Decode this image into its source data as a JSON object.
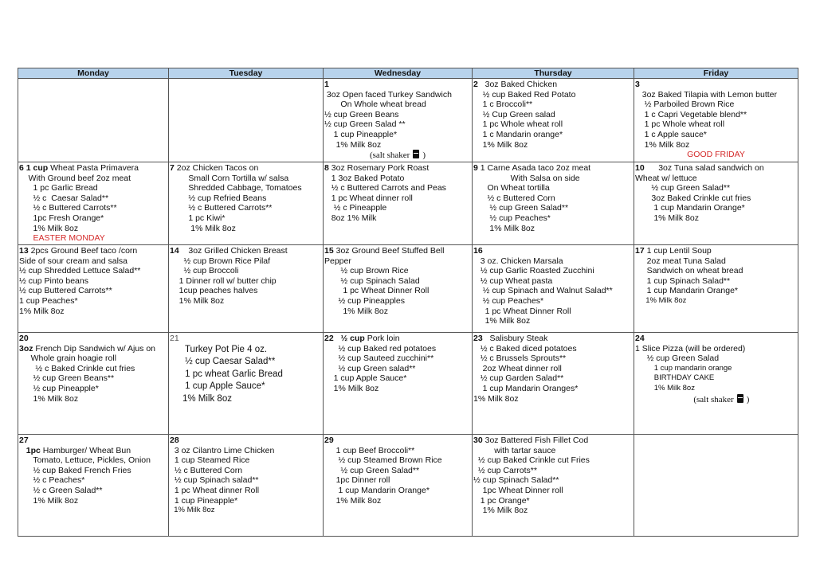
{
  "header": [
    "Monday",
    "Tuesday",
    "Wednesday",
    "Thursday",
    "Friday"
  ],
  "colors": {
    "header_bg": "#b8d3ec",
    "holiday": "#d42a2a"
  },
  "weeks": [
    [
      {
        "day": "",
        "lines": []
      },
      {
        "day": "",
        "lines": []
      },
      {
        "day": "1",
        "day_own_line": true,
        "lines": [
          {
            "t": " 3oz Open faced Turkey Sandwich"
          },
          {
            "t": "       On Whole wheat bread"
          },
          {
            "t": "½ cup Green Beans"
          },
          {
            "t": "½ cup Green Salad **"
          },
          {
            "t": "    1 cup Pineapple*"
          },
          {
            "t": "     1% Milk 8oz"
          },
          {
            "t": "(salt shaker",
            "s": "salt",
            "icon": "salt-shaker-icon",
            "after": ")"
          }
        ]
      },
      {
        "day": "2",
        "lines": [
          {
            "t": "  3oz Baked Chicken"
          },
          {
            "t": "    ½ cup Baked Red Potato"
          },
          {
            "t": "    1 c Broccoli**"
          },
          {
            "t": "    ½ Cup Green salad"
          },
          {
            "t": "    1 pc Whole wheat roll"
          },
          {
            "t": "    1 c Mandarin orange*"
          },
          {
            "t": "    1% Milk 8oz"
          }
        ]
      },
      {
        "day": "3",
        "day_own_line": true,
        "lines": [
          {
            "t": "   3oz Baked Tilapia with Lemon butter"
          },
          {
            "t": "    ½ Parboiled Brown Rice"
          },
          {
            "t": "    1 c Capri Vegetable blend**"
          },
          {
            "t": "    1 pc Whole wheat roll"
          },
          {
            "t": "    1 c Apple sauce*"
          },
          {
            "t": "    1% Milk 8oz"
          },
          {
            "t": "GOOD FRIDAY",
            "s": "red-center"
          }
        ]
      }
    ],
    [
      {
        "day": "6",
        "lines": [
          {
            "b": "1 cup",
            "t": " Wheat Pasta Primavera"
          },
          {
            "t": "    With Ground beef 2oz meat"
          },
          {
            "t": "      1 pc Garlic Bread"
          },
          {
            "t": "      ½ c  Caesar Salad**"
          },
          {
            "t": "      ½ c Buttered Carrots**"
          },
          {
            "t": "      1pc Fresh Orange*"
          },
          {
            "t": "      1% Milk 8oz"
          },
          {
            "t": "      EASTER MONDAY",
            "s": "red"
          }
        ]
      },
      {
        "day": "7",
        "lines": [
          {
            "t": "2oz Chicken Tacos on"
          },
          {
            "t": "        Small Corn Tortilla w/ salsa"
          },
          {
            "t": "        Shredded Cabbage, Tomatoes"
          },
          {
            "t": "        ½ cup Refried Beans"
          },
          {
            "t": "        ½ c Buttered Carrots**"
          },
          {
            "t": "        1 pc Kiwi*"
          },
          {
            "t": "         1% Milk 8oz"
          }
        ]
      },
      {
        "day": "8",
        "lines": [
          {
            "t": "3oz Rosemary Pork Roast"
          },
          {
            "t": "   1 3oz Baked Potato"
          },
          {
            "t": "   ½ c Buttered Carrots and Peas"
          },
          {
            "t": "   1 pc Wheat dinner roll"
          },
          {
            "t": "    ½ c Pineapple"
          },
          {
            "t": "   8oz 1% Milk"
          }
        ]
      },
      {
        "day": "9",
        "lines": [
          {
            "t": "1 Carne Asada taco 2oz meat"
          },
          {
            "t": "                With Salsa on side"
          },
          {
            "t": "      On Wheat tortilla"
          },
          {
            "t": "      ½ c Buttered Corn"
          },
          {
            "t": "       ½ cup Green Salad**"
          },
          {
            "t": "       ½ cup Peaches*"
          },
          {
            "t": "       1% Milk 8oz"
          }
        ]
      },
      {
        "day": "10",
        "lines": [
          {
            "t": "     3oz Tuna salad sandwich on"
          },
          {
            "t": "Wheat w/ lettuce"
          },
          {
            "t": "       ½ cup Green Salad**"
          },
          {
            "t": "       3oz Baked Crinkle cut fries"
          },
          {
            "t": "        1 cup Mandarin Orange*"
          },
          {
            "t": "        1% Milk 8oz"
          }
        ]
      }
    ],
    [
      {
        "day": "13",
        "lines": [
          {
            "t": "2pcs Ground Beef taco /corn"
          },
          {
            "t": "Side of sour cream and salsa"
          },
          {
            "t": "½ cup Shredded Lettuce Salad**"
          },
          {
            "t": "½ cup Pinto beans"
          },
          {
            "t": "½ cup Buttered Carrots**"
          },
          {
            "t": "1 cup Peaches*"
          },
          {
            "t": "1% Milk 8oz"
          }
        ]
      },
      {
        "day": "14",
        "lines": [
          {
            "t": "   3oz Grilled Chicken Breast"
          },
          {
            "t": "      ½ cup Brown Rice Pilaf"
          },
          {
            "t": "      ½ cup Broccoli"
          },
          {
            "t": "    1 Dinner roll w/ butter chip"
          },
          {
            "t": "    1cup peaches halves"
          },
          {
            "t": "    1% Milk 8oz"
          }
        ]
      },
      {
        "day": "15",
        "lines": [
          {
            "t": "3oz Ground Beef Stuffed Bell"
          },
          {
            "t": "Pepper"
          },
          {
            "t": "       ½ cup Brown Rice"
          },
          {
            "t": "       ½ cup Spinach Salad"
          },
          {
            "t": "        1 pc Wheat Dinner Roll"
          },
          {
            "t": "      ½ cup Pineapples"
          },
          {
            "t": "        1% Milk 8oz"
          }
        ]
      },
      {
        "day": "16",
        "day_own_line": true,
        "lines": [
          {
            "t": "   3 oz. Chicken Marsala"
          },
          {
            "t": "   ½ cup Garlic Roasted Zucchini"
          },
          {
            "t": "   ½ cup Wheat pasta"
          },
          {
            "t": "    ½ cup Spinach and Walnut Salad**"
          },
          {
            "t": "    ½ cup Peaches*"
          },
          {
            "t": "     1 pc Wheat Dinner Roll"
          },
          {
            "t": "     1% Milk 8oz"
          }
        ]
      },
      {
        "day": "17",
        "lines": [
          {
            "t": "1 cup Lentil Soup"
          },
          {
            "t": "     2oz meat Tuna Salad"
          },
          {
            "t": "     Sandwich on wheat bread"
          },
          {
            "t": "     1 cup Spinach Salad**"
          },
          {
            "t": "     1 cup Mandarin Orange*"
          },
          {
            "t": "     1% Milk 8oz",
            "s": "small"
          }
        ]
      }
    ],
    [
      {
        "day": "20",
        "day_own_line": true,
        "lines": [
          {
            "b": "3oz",
            "t": " French Dip Sandwich w/ Ajus on"
          },
          {
            "t": "     Whole grain hoagie roll"
          },
          {
            "t": "       ½ c Baked Crinkle cut fries"
          },
          {
            "t": "      ½ cup Green Beans**"
          },
          {
            "t": "      ½ cup Pineapple*"
          },
          {
            "t": "      1% Milk 8oz"
          }
        ]
      },
      {
        "day": "21",
        "day_own_line": true,
        "gray": true,
        "lines": [
          {
            "t": "      Turkey Pot Pie 4 oz.",
            "s": "big"
          },
          {
            "t": "      ½ cup Caesar Salad**",
            "s": "big"
          },
          {
            "t": "      1 pc wheat Garlic Bread",
            "s": "big"
          },
          {
            "t": "      1 cup Apple Sauce*",
            "s": "big"
          },
          {
            "t": "     1% Milk 8oz",
            "s": "big"
          }
        ]
      },
      {
        "day": "22",
        "lines": [
          {
            "b": "  ½ cup",
            "t": " Pork loin"
          },
          {
            "t": "      ½ cup Baked red potatoes"
          },
          {
            "t": "      ½ cup Sauteed zucchini**"
          },
          {
            "t": "      ½ cup Green salad**"
          },
          {
            "t": "    1 cup Apple Sauce*"
          },
          {
            "t": "    1% Milk 8oz"
          }
        ]
      },
      {
        "day": "23",
        "lines": [
          {
            "t": "  Salisbury Steak"
          },
          {
            "t": "   ½ c Baked diced potatoes"
          },
          {
            "t": "   ½ c Brussels Sprouts**"
          },
          {
            "t": "    2oz Wheat dinner roll"
          },
          {
            "t": "   ½ cup Garden Salad**"
          },
          {
            "t": "    1 cup Mandarin Oranges*"
          },
          {
            "t": "1% Milk 8oz"
          }
        ]
      },
      {
        "day": "24",
        "day_own_line": true,
        "lines": [
          {
            "t": "1 Slice Pizza (will be ordered)"
          },
          {
            "t": "     ½ cup Green Salad"
          },
          {
            "t": "         1 cup mandarin orange",
            "s": "small"
          },
          {
            "t": "         BIRTHDAY CAKE",
            "s": "small"
          },
          {
            "t": "         1% Milk 8oz",
            "s": "small"
          },
          {
            "t": "     (salt shaker",
            "s": "salt",
            "icon": "salt-shaker-icon",
            "after": ")"
          }
        ]
      }
    ],
    [
      {
        "day": "27",
        "day_own_line": true,
        "lines": [
          {
            "b": "   1pc",
            "t": " Hamburger/ Wheat Bun"
          },
          {
            "t": "      Tomato, Lettuce, Pickles, Onion"
          },
          {
            "t": "      ½ cup Baked French Fries"
          },
          {
            "t": "      ½ c Peaches*"
          },
          {
            "t": "      ½ c Green Salad**"
          },
          {
            "t": "      1% Milk 8oz"
          }
        ]
      },
      {
        "day": "28",
        "day_own_line": true,
        "lines": [
          {
            "t": "  3 oz Cilantro Lime Chicken"
          },
          {
            "t": "  1 cup Steamed Rice"
          },
          {
            "t": "  ½ c Buttered Corn"
          },
          {
            "t": "  ½ cup Spinach salad**"
          },
          {
            "t": "  1 pc Wheat dinner Roll"
          },
          {
            "t": "  1 cup Pineapple*"
          },
          {
            "t": "  1% Milk 8oz",
            "s": "small"
          }
        ]
      },
      {
        "day": "29",
        "day_own_line": true,
        "lines": [
          {
            "t": "     1 cup Beef Broccoli**"
          },
          {
            "t": "      ½ cup Steamed Brown Rice"
          },
          {
            "t": "       ½ cup Green Salad**"
          },
          {
            "t": "     1pc Dinner roll"
          },
          {
            "t": "      1 cup Mandarin Orange*"
          },
          {
            "t": "     1% Milk 8oz"
          }
        ]
      },
      {
        "day": "30",
        "lead": " ",
        "lines": [
          {
            "t": "3oz Battered Fish Fillet Cod"
          },
          {
            "t": "         with tartar sauce"
          },
          {
            "t": "  ½ cup Baked Crinkle cut Fries"
          },
          {
            "t": "  ½ cup Carrots**"
          },
          {
            "t": "½ cup Spinach Salad**"
          },
          {
            "t": "    1pc Wheat Dinner roll"
          },
          {
            "t": "   1 pc Orange*"
          },
          {
            "t": "    1% Milk 8oz"
          }
        ]
      },
      {
        "day": "",
        "lines": []
      }
    ]
  ]
}
